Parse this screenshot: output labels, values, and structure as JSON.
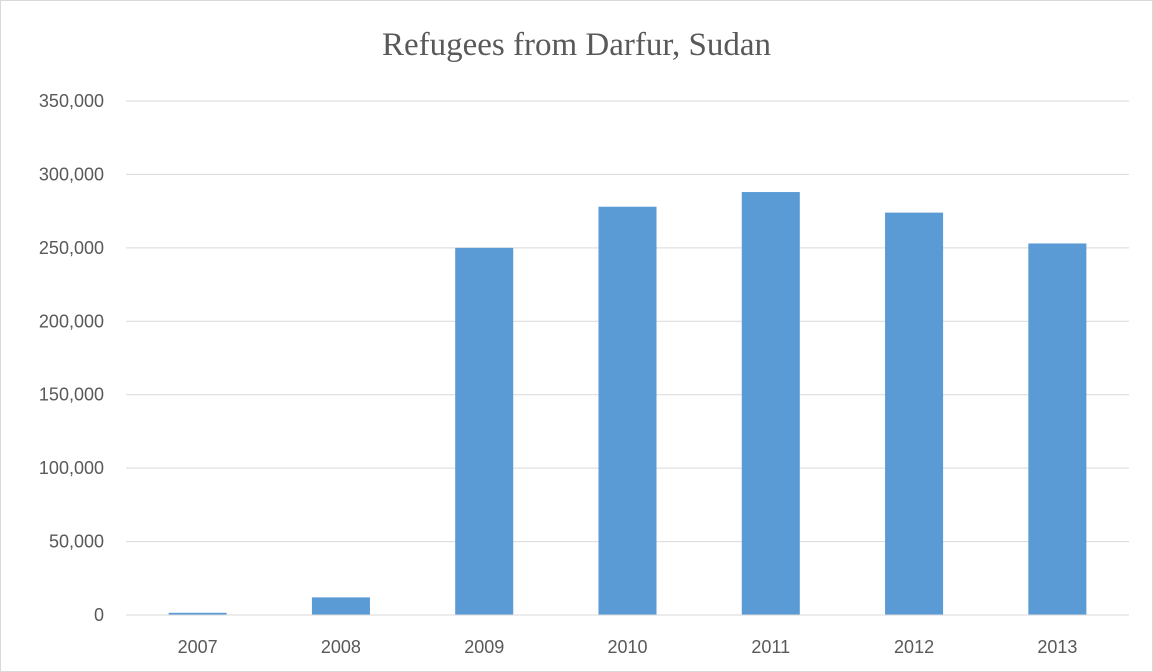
{
  "chart_data": {
    "type": "bar",
    "title": "Refugees from Darfur, Sudan",
    "xlabel": "",
    "ylabel": "",
    "categories": [
      "2007",
      "2008",
      "2009",
      "2010",
      "2011",
      "2012",
      "2013"
    ],
    "values": [
      1500,
      12000,
      250000,
      278000,
      288000,
      274000,
      253000
    ],
    "ylim": [
      0,
      350000
    ],
    "yticks": [
      0,
      50000,
      100000,
      150000,
      200000,
      250000,
      300000,
      350000
    ],
    "ytick_labels": [
      "0",
      "50,000",
      "100,000",
      "150,000",
      "200,000",
      "250,000",
      "300,000",
      "350,000"
    ],
    "grid": true,
    "legend": "none",
    "bar_color": "#5b9bd5",
    "grid_color": "#d9d9d9",
    "text_color": "#595959"
  }
}
